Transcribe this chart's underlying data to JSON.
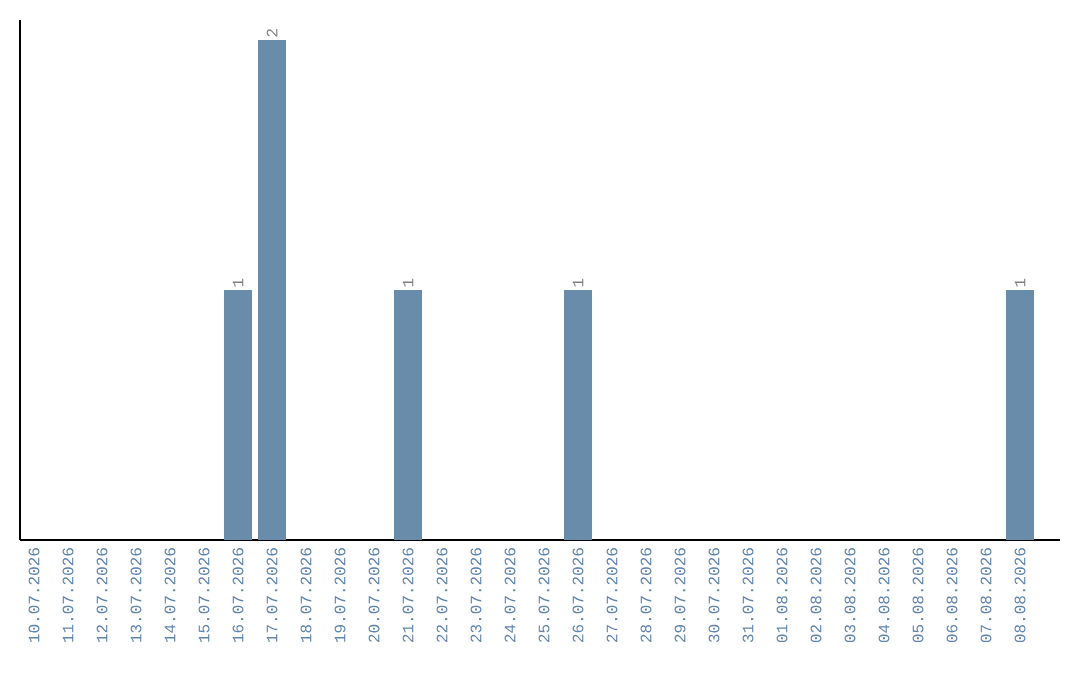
{
  "chart_data": {
    "type": "bar",
    "color": "#6a8cab",
    "categories": [
      "10.07.2026",
      "11.07.2026",
      "12.07.2026",
      "13.07.2026",
      "14.07.2026",
      "15.07.2026",
      "16.07.2026",
      "17.07.2026",
      "18.07.2026",
      "19.07.2026",
      "20.07.2026",
      "21.07.2026",
      "22.07.2026",
      "23.07.2026",
      "24.07.2026",
      "25.07.2026",
      "26.07.2026",
      "27.07.2026",
      "28.07.2026",
      "29.07.2026",
      "30.07.2026",
      "31.07.2026",
      "01.08.2026",
      "02.08.2026",
      "03.08.2026",
      "04.08.2026",
      "05.08.2026",
      "06.08.2026",
      "07.08.2026",
      "08.08.2026"
    ],
    "values": [
      0,
      0,
      0,
      0,
      0,
      0,
      1,
      2,
      0,
      0,
      0,
      1,
      0,
      0,
      0,
      0,
      1,
      0,
      0,
      0,
      0,
      0,
      0,
      0,
      0,
      0,
      0,
      0,
      0,
      1
    ],
    "value_labels": [
      null,
      null,
      null,
      null,
      null,
      null,
      "1",
      "2",
      null,
      null,
      null,
      "1",
      null,
      null,
      null,
      null,
      "1",
      null,
      null,
      null,
      null,
      null,
      null,
      null,
      null,
      null,
      null,
      null,
      null,
      "1"
    ]
  }
}
